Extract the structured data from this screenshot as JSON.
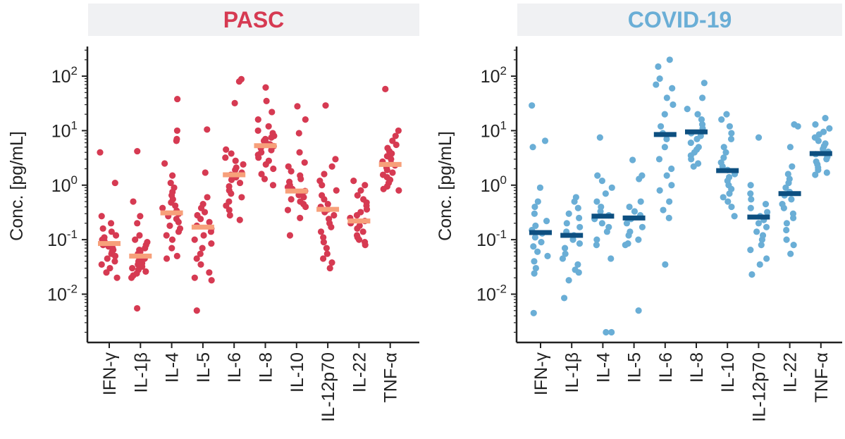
{
  "chart_data": [
    {
      "type": "scatter",
      "title": "PASC",
      "ylabel": "Conc.  [pg/mL]",
      "yscale": "log",
      "ylim": [
        0.0013,
        350
      ],
      "yticks": [
        0.01,
        0.1,
        1,
        10,
        100
      ],
      "ytick_labels": [
        {
          "base": "10",
          "exp": "-2"
        },
        {
          "base": "10",
          "exp": "-1"
        },
        {
          "base": "10",
          "exp": "0"
        },
        {
          "base": "10",
          "exp": "1"
        },
        {
          "base": "10",
          "exp": "2"
        }
      ],
      "categories": [
        "IFN-γ",
        "IL-1β",
        "IL-4",
        "IL-5",
        "IL-6",
        "IL-8",
        "IL-10",
        "IL-12p70",
        "IL-22",
        "TNF-α"
      ],
      "point_color": "#d63a52",
      "median_color": "#f7a07a",
      "grid": false,
      "legend": "none",
      "medians": [
        0.085,
        0.05,
        0.31,
        0.17,
        1.55,
        5.3,
        0.78,
        0.36,
        0.22,
        2.4
      ],
      "values": [
        [
          4.0,
          1.1,
          0.27,
          0.2,
          0.16,
          0.14,
          0.12,
          0.11,
          0.1,
          0.095,
          0.09,
          0.085,
          0.08,
          0.075,
          0.07,
          0.065,
          0.06,
          0.055,
          0.05,
          0.045,
          0.04,
          0.035,
          0.03,
          0.025,
          0.02
        ],
        [
          4.2,
          0.5,
          0.27,
          0.2,
          0.12,
          0.1,
          0.09,
          0.08,
          0.07,
          0.065,
          0.06,
          0.055,
          0.05,
          0.045,
          0.042,
          0.04,
          0.037,
          0.035,
          0.032,
          0.03,
          0.028,
          0.026,
          0.024,
          0.022,
          0.02,
          0.0055
        ],
        [
          38,
          10,
          7,
          6.5,
          2.5,
          1.5,
          1.1,
          0.9,
          0.75,
          0.65,
          0.55,
          0.48,
          0.42,
          0.38,
          0.34,
          0.3,
          0.27,
          0.24,
          0.21,
          0.18,
          0.16,
          0.14,
          0.12,
          0.1,
          0.07,
          0.05,
          0.045
        ],
        [
          10.5,
          1.7,
          0.6,
          0.45,
          0.38,
          0.32,
          0.28,
          0.24,
          0.21,
          0.18,
          0.16,
          0.14,
          0.12,
          0.1,
          0.085,
          0.07,
          0.055,
          0.045,
          0.035,
          0.025,
          0.02,
          0.018,
          0.005
        ],
        [
          88,
          80,
          32,
          4.5,
          3.8,
          3.2,
          2.8,
          2.4,
          2.1,
          1.9,
          1.7,
          1.55,
          1.4,
          1.25,
          1.1,
          0.95,
          0.8,
          0.7,
          0.6,
          0.5,
          0.42,
          0.35,
          0.28,
          0.23
        ],
        [
          62,
          35,
          22,
          16,
          12,
          10,
          9,
          8,
          7.5,
          7,
          6.5,
          6,
          5.6,
          5.2,
          4.8,
          4.4,
          4,
          3.6,
          3.2,
          2.8,
          2.4,
          2,
          1.6,
          1.3,
          1.0
        ],
        [
          28,
          16,
          9,
          4,
          2.6,
          2.2,
          1.8,
          1.5,
          1.3,
          1.15,
          1.0,
          0.92,
          0.85,
          0.78,
          0.72,
          0.66,
          0.6,
          0.55,
          0.5,
          0.45,
          0.4,
          0.35,
          0.25,
          0.12
        ],
        [
          29,
          3.0,
          2.2,
          1.6,
          1.2,
          1.0,
          0.8,
          0.65,
          0.55,
          0.45,
          0.4,
          0.36,
          0.32,
          0.28,
          0.24,
          0.2,
          0.17,
          0.14,
          0.11,
          0.09,
          0.07,
          0.055,
          0.045,
          0.038,
          0.03
        ],
        [
          1.2,
          1.0,
          0.8,
          0.65,
          0.55,
          0.48,
          0.42,
          0.36,
          0.32,
          0.28,
          0.25,
          0.22,
          0.2,
          0.18,
          0.16,
          0.14,
          0.12,
          0.11,
          0.1,
          0.09,
          0.08
        ],
        [
          58,
          10,
          8,
          6.5,
          5.5,
          4.8,
          4.2,
          3.8,
          3.4,
          3.0,
          2.7,
          2.5,
          2.3,
          2.1,
          1.9,
          1.7,
          1.55,
          1.4,
          1.25,
          1.1,
          0.95,
          0.85,
          0.8
        ]
      ]
    },
    {
      "type": "scatter",
      "title": "COVID-19",
      "ylabel": "Conc.  [pg/mL]",
      "yscale": "log",
      "ylim": [
        0.0013,
        350
      ],
      "yticks": [
        0.01,
        0.1,
        1,
        10,
        100
      ],
      "ytick_labels": [
        {
          "base": "10",
          "exp": "-2"
        },
        {
          "base": "10",
          "exp": "-1"
        },
        {
          "base": "10",
          "exp": "0"
        },
        {
          "base": "10",
          "exp": "1"
        },
        {
          "base": "10",
          "exp": "2"
        }
      ],
      "categories": [
        "IFN-γ",
        "IL-1β",
        "IL-4",
        "IL-5",
        "IL-6",
        "IL-8",
        "IL-10",
        "IL-12p70",
        "IL-22",
        "TNF-α"
      ],
      "point_color": "#6aaed6",
      "median_color": "#0d4f80",
      "grid": false,
      "legend": "none",
      "medians": [
        0.135,
        0.12,
        0.27,
        0.25,
        8.5,
        9.5,
        1.85,
        0.26,
        0.7,
        3.8
      ],
      "values": [
        [
          29,
          6.5,
          5,
          0.9,
          0.5,
          0.4,
          0.3,
          0.22,
          0.18,
          0.15,
          0.13,
          0.11,
          0.09,
          0.075,
          0.06,
          0.05,
          0.04,
          0.03,
          0.024,
          0.0045
        ],
        [
          0.6,
          0.5,
          0.38,
          0.3,
          0.25,
          0.2,
          0.17,
          0.14,
          0.12,
          0.1,
          0.085,
          0.07,
          0.055,
          0.045,
          0.035,
          0.028,
          0.025,
          0.018,
          0.0085
        ],
        [
          7.5,
          1.5,
          1.2,
          0.9,
          0.7,
          0.5,
          0.4,
          0.33,
          0.28,
          0.24,
          0.2,
          0.17,
          0.14,
          0.1,
          0.08,
          0.045,
          0.002,
          0.002
        ],
        [
          2.9,
          1.5,
          1.3,
          0.5,
          0.4,
          0.33,
          0.28,
          0.24,
          0.2,
          0.17,
          0.14,
          0.12,
          0.1,
          0.085,
          0.08,
          0.005
        ],
        [
          200,
          150,
          90,
          70,
          60,
          40,
          30,
          20,
          12,
          9,
          7,
          5,
          3,
          2,
          1.5,
          1.0,
          0.8,
          0.5,
          0.35,
          0.25,
          0.035
        ],
        [
          75,
          40,
          25,
          20,
          16,
          13,
          11,
          9,
          8,
          7,
          6,
          5,
          4.5,
          4,
          3.5,
          3,
          2.5,
          2.2
        ],
        [
          20,
          16,
          12,
          9,
          7,
          5,
          4,
          3.2,
          2.6,
          2.2,
          1.9,
          1.6,
          1.4,
          1.2,
          1.0,
          0.85,
          0.7,
          0.6,
          0.5,
          0.4,
          0.27
        ],
        [
          7.5,
          1.0,
          0.7,
          0.55,
          0.45,
          0.38,
          0.32,
          0.27,
          0.23,
          0.2,
          0.17,
          0.14,
          0.12,
          0.1,
          0.08,
          0.065,
          0.045,
          0.035,
          0.023
        ],
        [
          13,
          12,
          5,
          2.2,
          1.6,
          1.3,
          1.1,
          0.9,
          0.75,
          0.65,
          0.55,
          0.45,
          0.38,
          0.3,
          0.25,
          0.2,
          0.15,
          0.1,
          0.08,
          0.055
        ],
        [
          17,
          13,
          11,
          9.5,
          8.5,
          7.5,
          6.5,
          5.8,
          5.2,
          4.6,
          4.1,
          3.7,
          3.3,
          3.0,
          2.7,
          2.4,
          2.1,
          1.9,
          1.7,
          1.55
        ]
      ]
    }
  ]
}
